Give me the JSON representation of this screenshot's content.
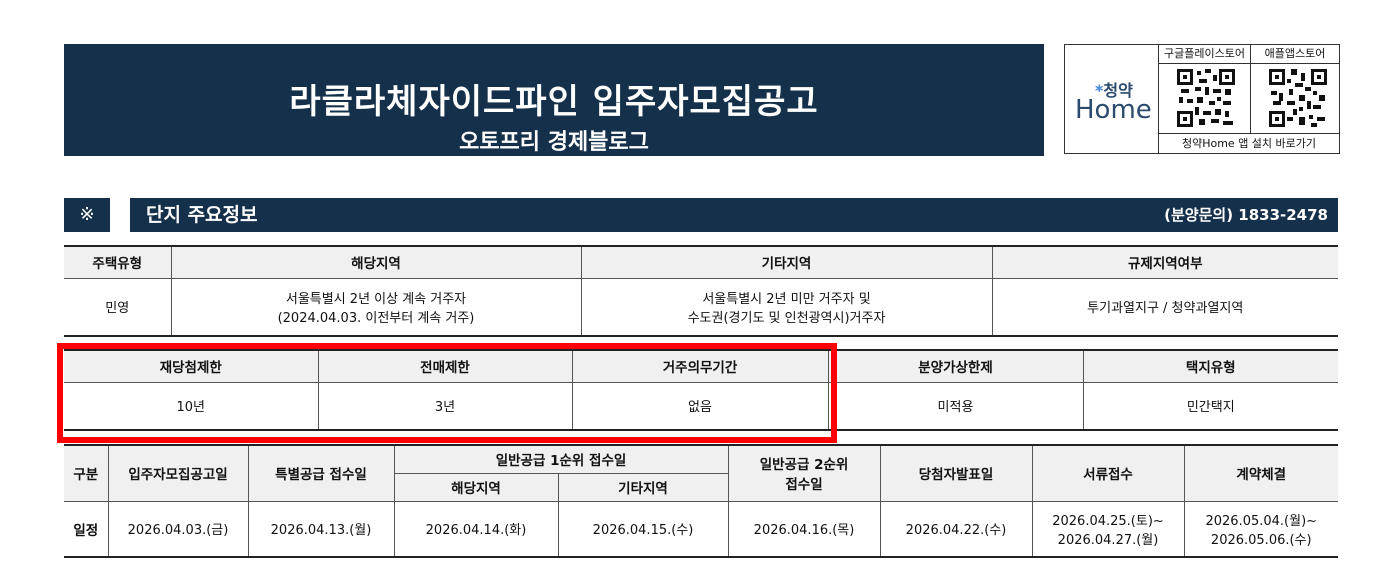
{
  "banner": {
    "title": "라클라체자이드파인 입주자모집공고",
    "subtitle": "오토프리 경제블로그"
  },
  "app": {
    "logo_top": "청약",
    "logo_bottom": "Home",
    "store1": "구글플레이스토어",
    "store2": "애플앱스토어",
    "link": "청약Home 앱 설치 바로가기"
  },
  "section": {
    "mark": "※",
    "title": "단지 주요정보",
    "contact": "(분양문의) 1833-2478"
  },
  "table1": {
    "headers": [
      "주택유형",
      "해당지역",
      "기타지역",
      "규제지역여부"
    ],
    "row": {
      "type": "민영",
      "local_line1": "서울특별시 2년 이상 계속 거주자",
      "local_line2": "(2024.04.03. 이전부터 계속 거주)",
      "other_line1": "서울특별시 2년 미만 거주자 및",
      "other_line2": "수도권(경기도 및 인천광역시)거주자",
      "regulation": "투기과열지구 / 청약과열지역"
    }
  },
  "table2": {
    "headers": [
      "재당첨제한",
      "전매제한",
      "거주의무기간",
      "분양가상한제",
      "택지유형"
    ],
    "values": [
      "10년",
      "3년",
      "없음",
      "미적용",
      "민간택지"
    ]
  },
  "table3": {
    "h_category": "구분",
    "h_notice": "입주자모집공고일",
    "h_special": "특별공급 접수일",
    "h_first": "일반공급 1순위 접수일",
    "h_first_local": "해당지역",
    "h_first_other": "기타지역",
    "h_second_l1": "일반공급 2순위",
    "h_second_l2": "접수일",
    "h_announce": "당첨자발표일",
    "h_docs": "서류접수",
    "h_contract": "계약체결",
    "row_label": "일정",
    "notice": "2026.04.03.(금)",
    "special": "2026.04.13.(월)",
    "first_local": "2026.04.14.(화)",
    "first_other": "2026.04.15.(수)",
    "second": "2026.04.16.(목)",
    "announce": "2026.04.22.(수)",
    "docs_l1": "2026.04.25.(토)~",
    "docs_l2": "2026.04.27.(월)",
    "contract_l1": "2026.05.04.(월)~",
    "contract_l2": "2026.05.06.(수)"
  }
}
